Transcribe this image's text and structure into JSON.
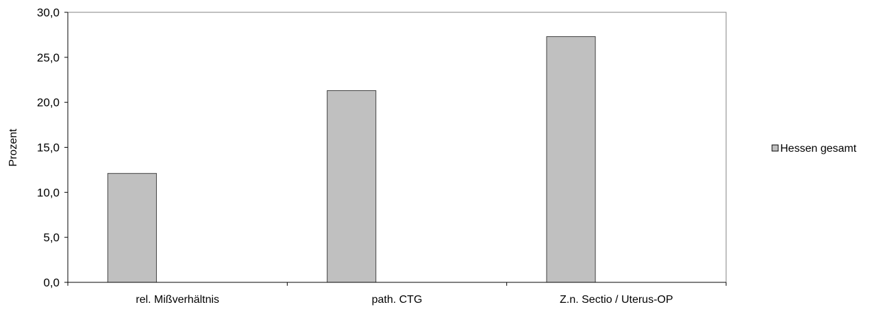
{
  "chart_data": {
    "type": "bar",
    "title": "",
    "xlabel": "",
    "ylabel": "Prozent",
    "ylim": [
      0,
      30
    ],
    "yticks": [
      0,
      5,
      10,
      15,
      20,
      25,
      30
    ],
    "ytick_labels": [
      "0,0",
      "5,0",
      "10,0",
      "15,0",
      "20,0",
      "25,0",
      "30,0"
    ],
    "categories": [
      "rel. Mißverhältnis",
      "path. CTG",
      "Z.n. Sectio / Uterus-OP"
    ],
    "series": [
      {
        "name": "Hessen gesamt",
        "values": [
          12.1,
          21.3,
          27.3
        ],
        "color": "#c0c0c0"
      }
    ],
    "grid": false,
    "legend_position": "right"
  }
}
